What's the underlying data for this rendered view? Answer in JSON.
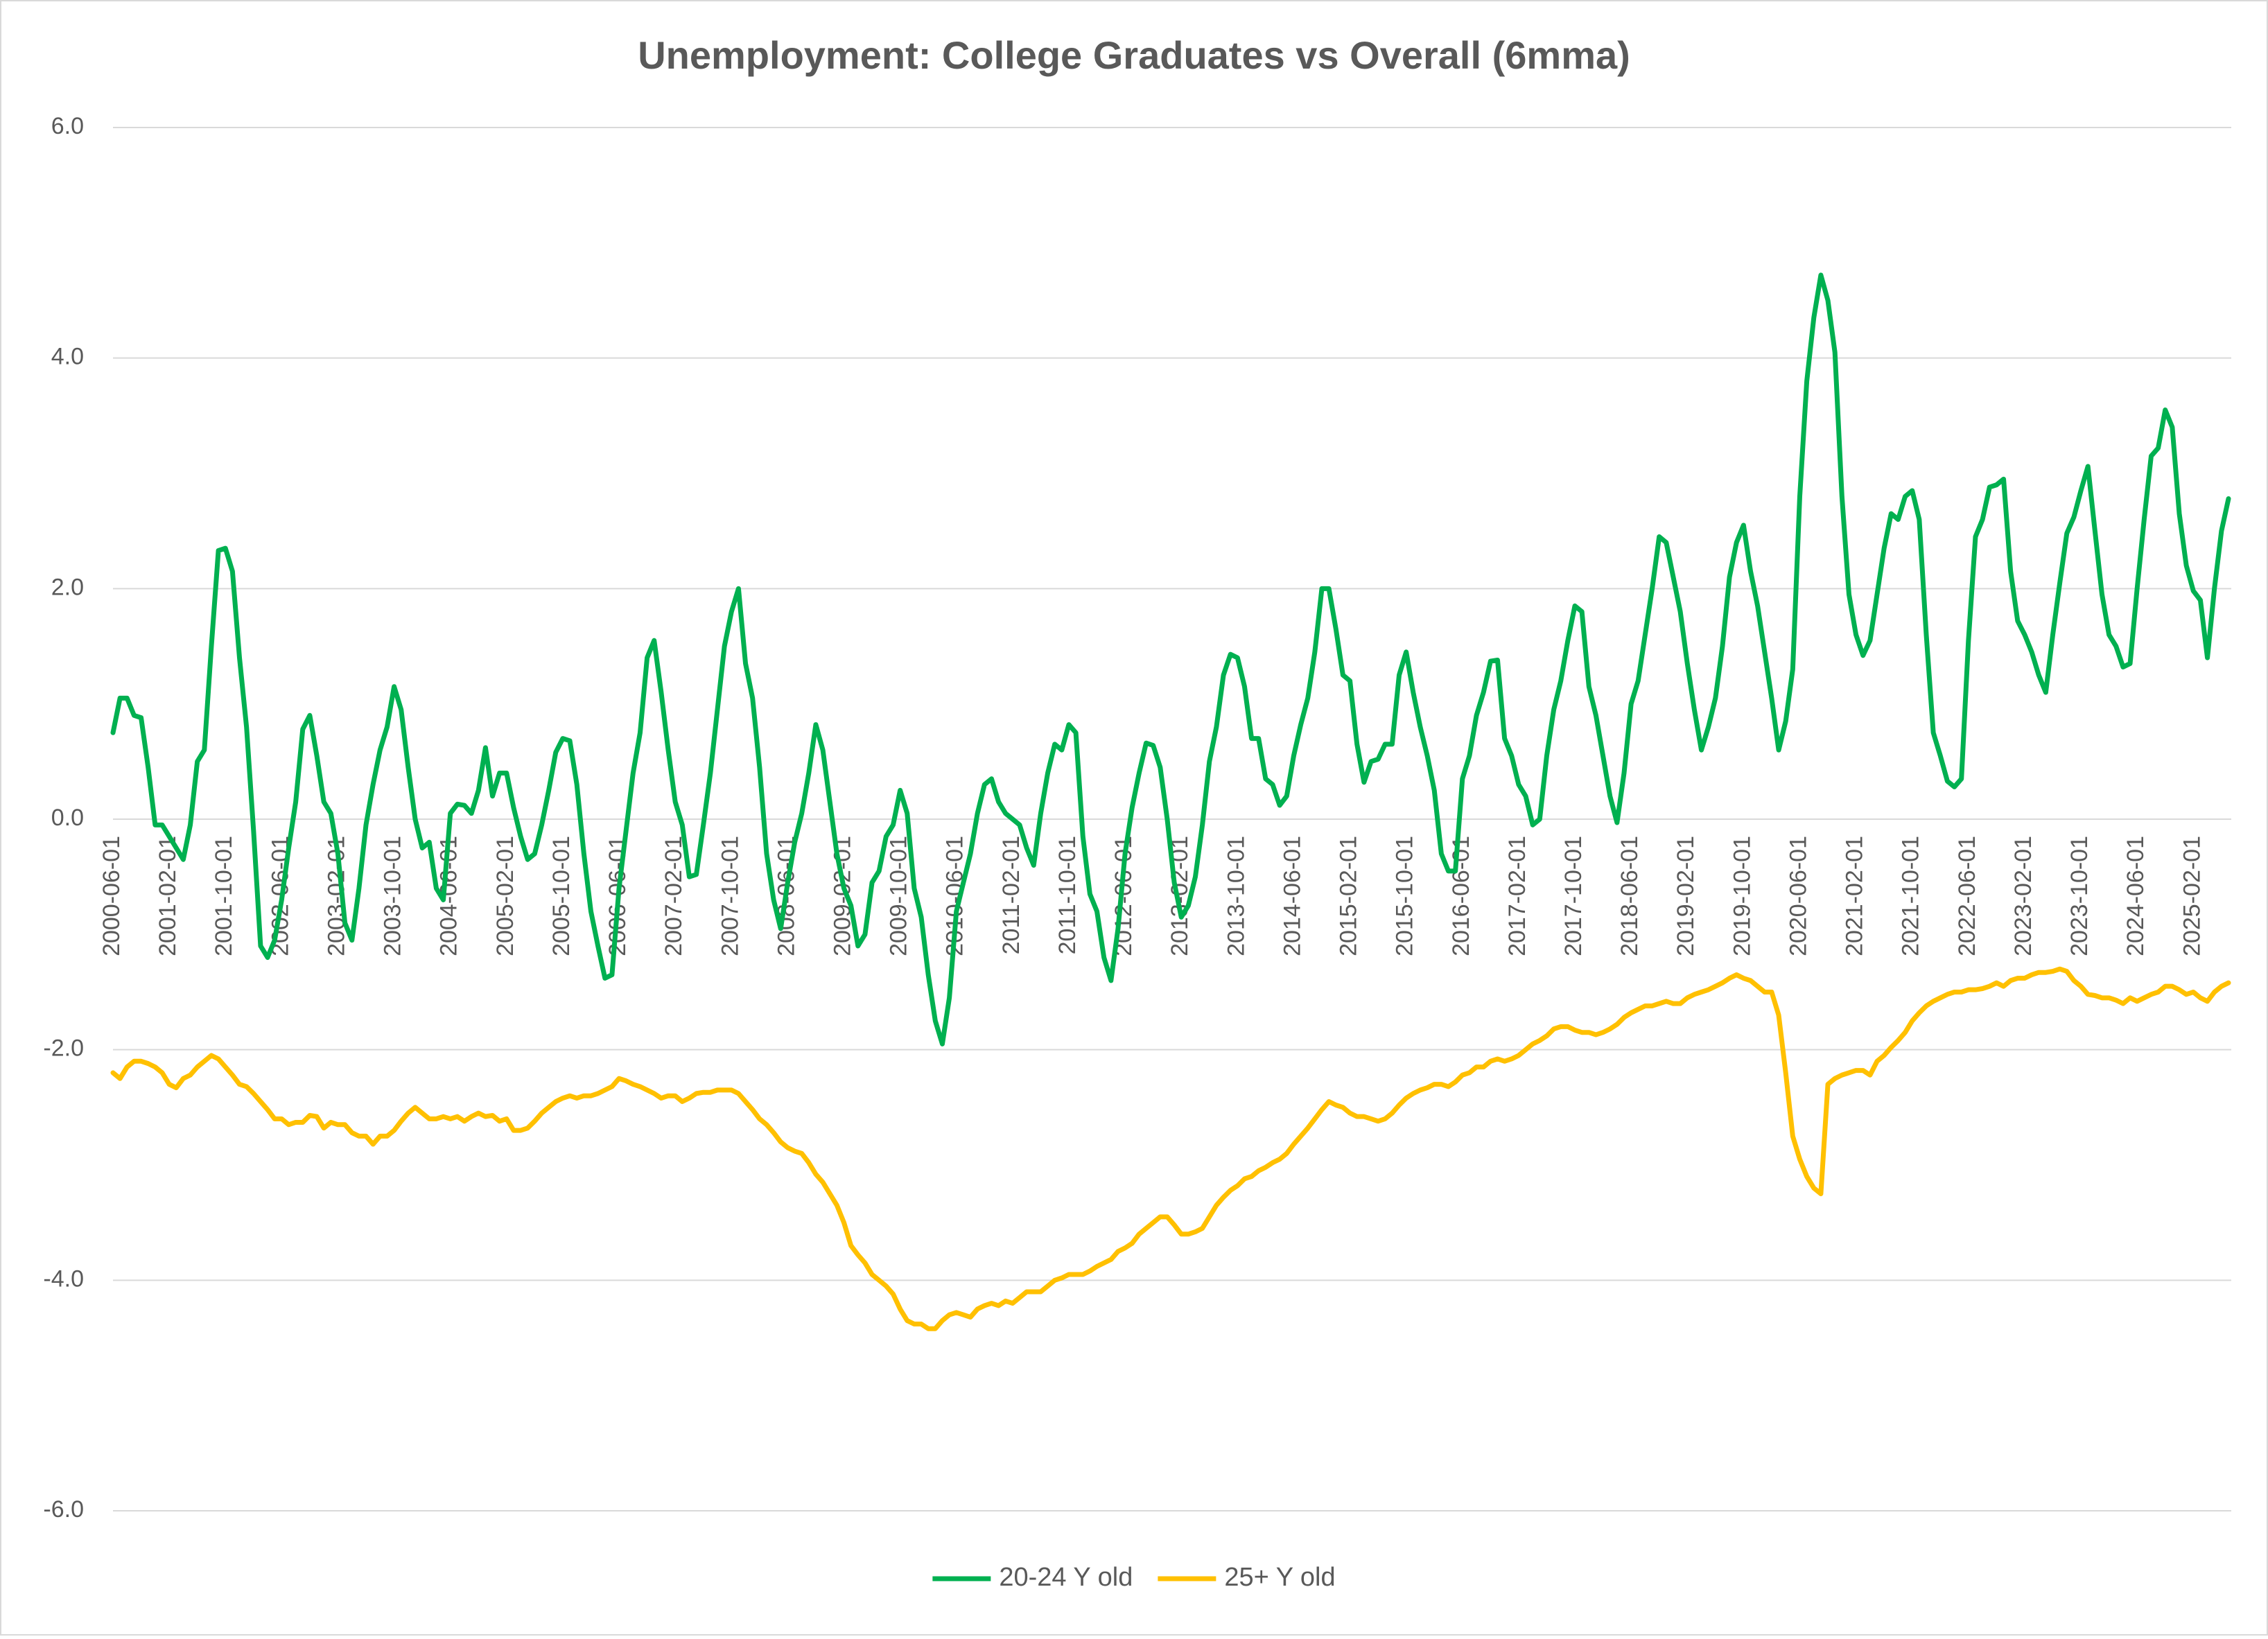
{
  "chart_data": {
    "type": "line",
    "title": "Unemployment: College Graduates vs Overall (6mma)",
    "categories": [
      "2000-06-01",
      null,
      null,
      null,
      null,
      null,
      null,
      null,
      "2001-02-01",
      null,
      null,
      null,
      null,
      null,
      null,
      null,
      "2001-10-01",
      null,
      null,
      null,
      null,
      null,
      null,
      null,
      "2002-06-01",
      null,
      null,
      null,
      null,
      null,
      null,
      null,
      "2003-02-01",
      null,
      null,
      null,
      null,
      null,
      null,
      null,
      "2003-10-01",
      null,
      null,
      null,
      null,
      null,
      null,
      null,
      "2004-06-01",
      null,
      null,
      null,
      null,
      null,
      null,
      null,
      "2005-02-01",
      null,
      null,
      null,
      null,
      null,
      null,
      null,
      "2005-10-01",
      null,
      null,
      null,
      null,
      null,
      null,
      null,
      "2006-06-01",
      null,
      null,
      null,
      null,
      null,
      null,
      null,
      "2007-02-01",
      null,
      null,
      null,
      null,
      null,
      null,
      null,
      "2007-10-01",
      null,
      null,
      null,
      null,
      null,
      null,
      null,
      "2008-06-01",
      null,
      null,
      null,
      null,
      null,
      null,
      null,
      "2009-02-01",
      null,
      null,
      null,
      null,
      null,
      null,
      null,
      "2009-10-01",
      null,
      null,
      null,
      null,
      null,
      null,
      null,
      "2010-06-01",
      null,
      null,
      null,
      null,
      null,
      null,
      null,
      "2011-02-01",
      null,
      null,
      null,
      null,
      null,
      null,
      null,
      "2011-10-01",
      null,
      null,
      null,
      null,
      null,
      null,
      null,
      "2012-06-01",
      null,
      null,
      null,
      null,
      null,
      null,
      null,
      "2013-02-01",
      null,
      null,
      null,
      null,
      null,
      null,
      null,
      "2013-10-01",
      null,
      null,
      null,
      null,
      null,
      null,
      null,
      "2014-06-01",
      null,
      null,
      null,
      null,
      null,
      null,
      null,
      "2015-02-01",
      null,
      null,
      null,
      null,
      null,
      null,
      null,
      "2015-10-01",
      null,
      null,
      null,
      null,
      null,
      null,
      null,
      "2016-06-01",
      null,
      null,
      null,
      null,
      null,
      null,
      null,
      "2017-02-01",
      null,
      null,
      null,
      null,
      null,
      null,
      null,
      "2017-10-01",
      null,
      null,
      null,
      null,
      null,
      null,
      null,
      "2018-06-01",
      null,
      null,
      null,
      null,
      null,
      null,
      null,
      "2019-02-01",
      null,
      null,
      null,
      null,
      null,
      null,
      null,
      "2019-10-01",
      null,
      null,
      null,
      null,
      null,
      null,
      null,
      "2020-06-01",
      null,
      null,
      null,
      null,
      null,
      null,
      null,
      "2021-02-01",
      null,
      null,
      null,
      null,
      null,
      null,
      null,
      "2021-10-01",
      null,
      null,
      null,
      null,
      null,
      null,
      null,
      "2022-06-01",
      null,
      null,
      null,
      null,
      null,
      null,
      null,
      "2023-02-01",
      null,
      null,
      null,
      null,
      null,
      null,
      null,
      "2023-10-01",
      null,
      null,
      null,
      null,
      null,
      null,
      null,
      "2024-06-01",
      null,
      null,
      null,
      null,
      null,
      null,
      null,
      "2025-02-01",
      null,
      null,
      null,
      null,
      null
    ],
    "series": [
      {
        "name": "20-24 Y old",
        "color": "#00b050",
        "values": [
          0.75,
          1.05,
          1.05,
          0.9,
          0.88,
          0.45,
          -0.05,
          -0.05,
          -0.15,
          -0.25,
          -0.35,
          -0.05,
          0.5,
          0.6,
          1.5,
          2.33,
          2.35,
          2.15,
          1.4,
          0.8,
          -0.1,
          -1.1,
          -1.2,
          -1.05,
          -0.7,
          -0.25,
          0.15,
          0.78,
          0.9,
          0.55,
          0.15,
          0.05,
          -0.3,
          -0.9,
          -1.05,
          -0.6,
          -0.05,
          0.3,
          0.6,
          0.8,
          1.15,
          0.95,
          0.45,
          0,
          -0.25,
          -0.2,
          -0.6,
          -0.7,
          0.05,
          0.13,
          0.12,
          0.05,
          0.25,
          0.62,
          0.2,
          0.4,
          0.4,
          0.1,
          -0.15,
          -0.35,
          -0.3,
          -0.05,
          0.25,
          0.58,
          0.7,
          0.68,
          0.3,
          -0.3,
          -0.8,
          -1.1,
          -1.38,
          -1.35,
          -0.6,
          -0.1,
          0.4,
          0.75,
          1.4,
          1.55,
          1.1,
          0.6,
          0.15,
          -0.05,
          -0.5,
          -0.48,
          -0.05,
          0.4,
          0.95,
          1.5,
          1.8,
          2.0,
          1.35,
          1.05,
          0.45,
          -0.3,
          -0.7,
          -0.95,
          -0.55,
          -0.2,
          0.05,
          0.4,
          0.82,
          0.6,
          0.15,
          -0.3,
          -0.6,
          -0.75,
          -1.1,
          -1.0,
          -0.55,
          -0.45,
          -0.15,
          -0.05,
          0.25,
          0.05,
          -0.6,
          -0.85,
          -1.35,
          -1.75,
          -1.95,
          -1.55,
          -0.8,
          -0.55,
          -0.3,
          0.05,
          0.3,
          0.35,
          0.15,
          0.05,
          0.0,
          -0.05,
          -0.25,
          -0.4,
          0.05,
          0.4,
          0.65,
          0.6,
          0.82,
          0.75,
          -0.15,
          -0.65,
          -0.8,
          -1.2,
          -1.4,
          -0.95,
          -0.3,
          0.1,
          0.4,
          0.66,
          0.64,
          0.45,
          0.0,
          -0.55,
          -0.85,
          -0.75,
          -0.5,
          -0.05,
          0.5,
          0.8,
          1.25,
          1.43,
          1.4,
          1.15,
          0.7,
          0.7,
          0.35,
          0.3,
          0.12,
          0.2,
          0.55,
          0.82,
          1.05,
          1.45,
          2.0,
          2.0,
          1.65,
          1.25,
          1.2,
          0.65,
          0.32,
          0.5,
          0.52,
          0.65,
          0.65,
          1.25,
          1.45,
          1.1,
          0.8,
          0.55,
          0.25,
          -0.3,
          -0.45,
          -0.45,
          0.35,
          0.55,
          0.9,
          1.1,
          1.37,
          1.38,
          0.7,
          0.55,
          0.3,
          0.2,
          -0.05,
          0.0,
          0.55,
          0.95,
          1.2,
          1.55,
          1.85,
          1.8,
          1.15,
          0.9,
          0.55,
          0.2,
          -0.03,
          0.4,
          1.0,
          1.2,
          1.6,
          2.0,
          2.45,
          2.4,
          2.1,
          1.8,
          1.35,
          0.95,
          0.6,
          0.8,
          1.05,
          1.5,
          2.1,
          2.4,
          2.55,
          2.15,
          1.85,
          1.45,
          1.05,
          0.6,
          0.85,
          1.3,
          2.8,
          3.8,
          4.35,
          4.72,
          4.5,
          4.05,
          2.8,
          1.95,
          1.6,
          1.42,
          1.55,
          1.95,
          2.35,
          2.65,
          2.6,
          2.8,
          2.85,
          2.6,
          1.6,
          0.75,
          0.55,
          0.33,
          0.28,
          0.35,
          1.55,
          2.45,
          2.6,
          2.88,
          2.9,
          2.95,
          2.15,
          1.72,
          1.6,
          1.45,
          1.25,
          1.1,
          1.6,
          2.05,
          2.48,
          2.62,
          2.85,
          3.06,
          2.5,
          1.95,
          1.6,
          1.5,
          1.32,
          1.35,
          2.0,
          2.6,
          3.15,
          3.22,
          3.55,
          3.4,
          2.65,
          2.2,
          1.98,
          1.9,
          1.4,
          2.0,
          2.5,
          2.78
        ]
      },
      {
        "name": "25+ Y old",
        "color": "#ffc000",
        "values": [
          -2.2,
          -2.25,
          -2.15,
          -2.1,
          -2.1,
          -2.12,
          -2.15,
          -2.2,
          -2.3,
          -2.33,
          -2.25,
          -2.22,
          -2.15,
          -2.1,
          -2.05,
          -2.08,
          -2.15,
          -2.22,
          -2.3,
          -2.32,
          -2.38,
          -2.45,
          -2.52,
          -2.6,
          -2.6,
          -2.65,
          -2.63,
          -2.63,
          -2.57,
          -2.58,
          -2.68,
          -2.63,
          -2.65,
          -2.65,
          -2.72,
          -2.75,
          -2.75,
          -2.82,
          -2.75,
          -2.75,
          -2.7,
          -2.62,
          -2.55,
          -2.5,
          -2.55,
          -2.6,
          -2.6,
          -2.58,
          -2.6,
          -2.58,
          -2.62,
          -2.58,
          -2.55,
          -2.58,
          -2.57,
          -2.62,
          -2.6,
          -2.7,
          -2.7,
          -2.68,
          -2.62,
          -2.55,
          -2.5,
          -2.45,
          -2.42,
          -2.4,
          -2.42,
          -2.4,
          -2.4,
          -2.38,
          -2.35,
          -2.32,
          -2.25,
          -2.27,
          -2.3,
          -2.32,
          -2.35,
          -2.38,
          -2.42,
          -2.4,
          -2.4,
          -2.45,
          -2.42,
          -2.38,
          -2.37,
          -2.37,
          -2.35,
          -2.35,
          -2.35,
          -2.38,
          -2.45,
          -2.52,
          -2.6,
          -2.65,
          -2.72,
          -2.8,
          -2.85,
          -2.88,
          -2.9,
          -2.98,
          -3.08,
          -3.15,
          -3.25,
          -3.35,
          -3.5,
          -3.7,
          -3.78,
          -3.85,
          -3.95,
          -4.0,
          -4.05,
          -4.12,
          -4.25,
          -4.35,
          -4.38,
          -4.38,
          -4.42,
          -4.42,
          -4.35,
          -4.3,
          -4.28,
          -4.3,
          -4.32,
          -4.25,
          -4.22,
          -4.2,
          -4.22,
          -4.18,
          -4.2,
          -4.15,
          -4.1,
          -4.1,
          -4.1,
          -4.05,
          -4.0,
          -3.98,
          -3.95,
          -3.95,
          -3.95,
          -3.92,
          -3.88,
          -3.85,
          -3.82,
          -3.75,
          -3.72,
          -3.68,
          -3.6,
          -3.55,
          -3.5,
          -3.45,
          -3.45,
          -3.52,
          -3.6,
          -3.6,
          -3.58,
          -3.55,
          -3.45,
          -3.35,
          -3.28,
          -3.22,
          -3.18,
          -3.12,
          -3.1,
          -3.05,
          -3.02,
          -2.98,
          -2.95,
          -2.9,
          -2.82,
          -2.75,
          -2.68,
          -2.6,
          -2.52,
          -2.45,
          -2.48,
          -2.5,
          -2.55,
          -2.58,
          -2.58,
          -2.6,
          -2.62,
          -2.6,
          -2.55,
          -2.48,
          -2.42,
          -2.38,
          -2.35,
          -2.33,
          -2.3,
          -2.3,
          -2.32,
          -2.28,
          -2.22,
          -2.2,
          -2.15,
          -2.15,
          -2.1,
          -2.08,
          -2.1,
          -2.08,
          -2.05,
          -2.0,
          -1.95,
          -1.92,
          -1.88,
          -1.82,
          -1.8,
          -1.8,
          -1.83,
          -1.85,
          -1.85,
          -1.87,
          -1.85,
          -1.82,
          -1.78,
          -1.72,
          -1.68,
          -1.65,
          -1.62,
          -1.62,
          -1.6,
          -1.58,
          -1.6,
          -1.6,
          -1.55,
          -1.52,
          -1.5,
          -1.48,
          -1.45,
          -1.42,
          -1.38,
          -1.35,
          -1.38,
          -1.4,
          -1.45,
          -1.5,
          -1.5,
          -1.7,
          -2.2,
          -2.75,
          -2.95,
          -3.1,
          -3.2,
          -3.25,
          -2.3,
          -2.25,
          -2.22,
          -2.2,
          -2.18,
          -2.18,
          -2.22,
          -2.1,
          -2.05,
          -1.98,
          -1.92,
          -1.85,
          -1.75,
          -1.68,
          -1.62,
          -1.58,
          -1.55,
          -1.52,
          -1.5,
          -1.5,
          -1.48,
          -1.48,
          -1.47,
          -1.45,
          -1.42,
          -1.45,
          -1.4,
          -1.38,
          -1.38,
          -1.35,
          -1.33,
          -1.33,
          -1.32,
          -1.3,
          -1.32,
          -1.4,
          -1.45,
          -1.52,
          -1.53,
          -1.55,
          -1.55,
          -1.57,
          -1.6,
          -1.55,
          -1.58,
          -1.55,
          -1.52,
          -1.5,
          -1.45,
          -1.45,
          -1.48,
          -1.52,
          -1.5,
          -1.55,
          -1.58,
          -1.5,
          -1.45,
          -1.42
        ]
      }
    ],
    "ylim": [
      -6,
      6
    ],
    "yticks": [
      {
        "value": -6,
        "label": "-6.0"
      },
      {
        "value": -4,
        "label": "-4.0"
      },
      {
        "value": -2,
        "label": "-2.0"
      },
      {
        "value": 0,
        "label": "0.0"
      },
      {
        "value": 2,
        "label": "2.0"
      },
      {
        "value": 4,
        "label": "4.0"
      },
      {
        "value": 6,
        "label": "6.0"
      }
    ],
    "grid": true,
    "legend": "bottom"
  }
}
